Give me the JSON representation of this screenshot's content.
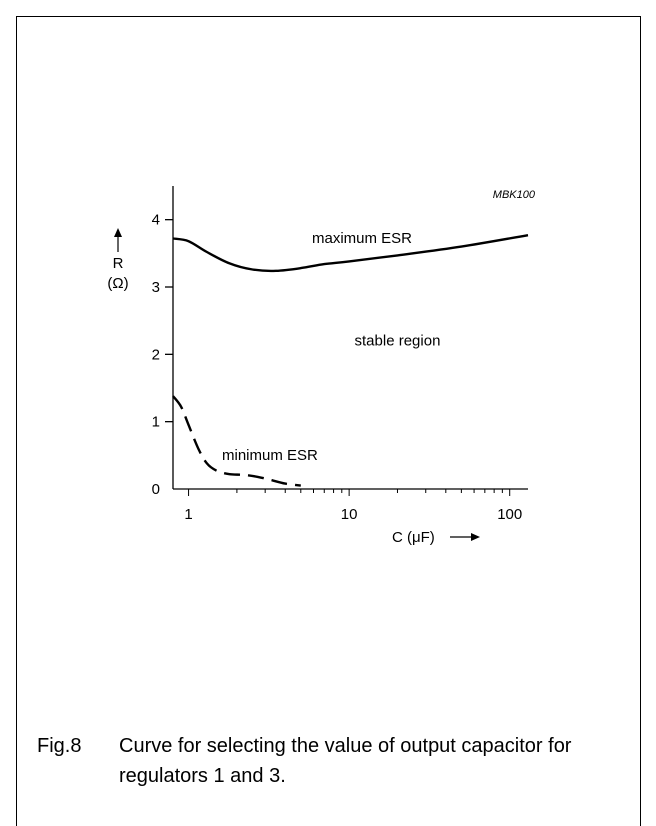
{
  "chart_data": {
    "type": "line",
    "code": "MBK100",
    "x_scale": "log",
    "xlim": [
      0.8,
      130
    ],
    "ylim": [
      0,
      4.5
    ],
    "x_ticks": [
      1,
      10,
      100
    ],
    "x_tick_labels": [
      "1",
      "10",
      "100"
    ],
    "y_ticks": [
      0,
      1,
      2,
      3,
      4
    ],
    "y_tick_labels": [
      "0",
      "1",
      "2",
      "3",
      "4"
    ],
    "ylabel": "R",
    "ylabel_unit": "(Ω)",
    "xlabel": "C (μF)",
    "series": [
      {
        "name": "maximum ESR",
        "style": "solid",
        "x": [
          0.8,
          1.0,
          1.3,
          1.8,
          2.5,
          3.5,
          5,
          7,
          10,
          20,
          50,
          130
        ],
        "y": [
          3.72,
          3.68,
          3.52,
          3.35,
          3.26,
          3.24,
          3.28,
          3.34,
          3.38,
          3.47,
          3.6,
          3.77
        ]
      },
      {
        "name": "minimum ESR",
        "style": "dashed",
        "x": [
          0.8,
          0.9,
          1.0,
          1.15,
          1.3,
          1.5,
          1.8,
          2.2,
          2.7,
          3.3,
          4.0,
          5.0
        ],
        "y": [
          1.38,
          1.22,
          0.95,
          0.6,
          0.38,
          0.27,
          0.22,
          0.21,
          0.18,
          0.13,
          0.08,
          0.05
        ]
      }
    ],
    "annotations": [
      {
        "text": "stable region",
        "x": 20,
        "y": 2.13
      }
    ]
  },
  "caption": {
    "fig": "Fig.8",
    "text": "Curve for selecting the value of output capacitor for regulators 1 and 3."
  }
}
